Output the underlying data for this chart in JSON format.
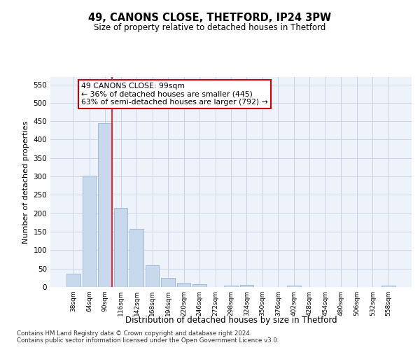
{
  "title1": "49, CANONS CLOSE, THETFORD, IP24 3PW",
  "title2": "Size of property relative to detached houses in Thetford",
  "xlabel": "Distribution of detached houses by size in Thetford",
  "ylabel": "Number of detached properties",
  "categories": [
    "38sqm",
    "64sqm",
    "90sqm",
    "116sqm",
    "142sqm",
    "168sqm",
    "194sqm",
    "220sqm",
    "246sqm",
    "272sqm",
    "298sqm",
    "324sqm",
    "350sqm",
    "376sqm",
    "402sqm",
    "428sqm",
    "454sqm",
    "480sqm",
    "506sqm",
    "532sqm",
    "558sqm"
  ],
  "values": [
    37,
    303,
    445,
    215,
    157,
    58,
    25,
    11,
    8,
    0,
    4,
    6,
    0,
    0,
    3,
    0,
    0,
    0,
    0,
    0,
    4
  ],
  "bar_color": "#c8d9ee",
  "bar_edgecolor": "#9ab5d5",
  "grid_color": "#c8d4e8",
  "bg_color": "#eef2fa",
  "red_line_index": 2,
  "annotation_text": "49 CANONS CLOSE: 99sqm\n← 36% of detached houses are smaller (445)\n63% of semi-detached houses are larger (792) →",
  "annotation_box_color": "#ffffff",
  "annotation_box_edgecolor": "#cc0000",
  "footnote1": "Contains HM Land Registry data © Crown copyright and database right 2024.",
  "footnote2": "Contains public sector information licensed under the Open Government Licence v3.0.",
  "ylim": [
    0,
    570
  ],
  "yticks": [
    0,
    50,
    100,
    150,
    200,
    250,
    300,
    350,
    400,
    450,
    500,
    550
  ]
}
